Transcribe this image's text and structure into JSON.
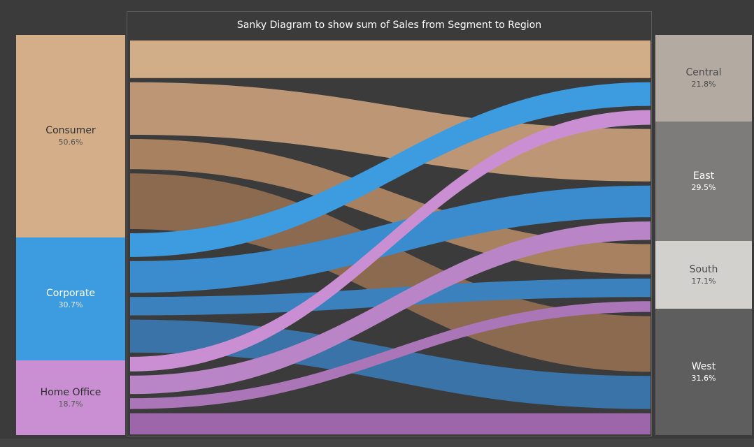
{
  "title": "Sanky Diagram to show sum of Sales from Segment to Region",
  "segments": [
    {
      "name": "Consumer",
      "pct": "50.6%",
      "color": "#d3ae89"
    },
    {
      "name": "Corporate",
      "pct": "30.7%",
      "color": "#3d9be0"
    },
    {
      "name": "Home Office",
      "pct": "18.7%",
      "color": "#c98fd2"
    }
  ],
  "regions": [
    {
      "name": "Central",
      "pct": "21.8%",
      "color": "#b3aaa1",
      "text_color": "#4a4a4a"
    },
    {
      "name": "East",
      "pct": "29.5%",
      "color": "#7d7c7a",
      "text_color": "#ffffff"
    },
    {
      "name": "South",
      "pct": "17.1%",
      "color": "#d3d1ce",
      "text_color": "#4a4a4a"
    },
    {
      "name": "West",
      "pct": "31.6%",
      "color": "#5e5e5e",
      "text_color": "#ffffff"
    }
  ],
  "chart_data": {
    "type": "sankey",
    "title": "Sanky Diagram to show sum of Sales from Segment to Region",
    "measure": "Sales",
    "nodes_left": [
      "Consumer",
      "Corporate",
      "Home Office"
    ],
    "nodes_right": [
      "Central",
      "East",
      "South",
      "West"
    ],
    "segment_share_pct": {
      "Consumer": 50.6,
      "Corporate": 30.7,
      "Home Office": 18.7
    },
    "region_share_pct": {
      "Central": 21.8,
      "East": 29.5,
      "South": 17.1,
      "West": 31.6
    },
    "links": [
      {
        "source": "Consumer",
        "target": "Central",
        "value": 10.8,
        "color": "#d2ae88"
      },
      {
        "source": "Consumer",
        "target": "East",
        "value": 15.1,
        "color": "#bd9775"
      },
      {
        "source": "Consumer",
        "target": "South",
        "value": 8.7,
        "color": "#a88260"
      },
      {
        "source": "Consumer",
        "target": "West",
        "value": 16.0,
        "color": "#8b6a50"
      },
      {
        "source": "Corporate",
        "target": "Central",
        "value": 6.8,
        "color": "#3d9be0"
      },
      {
        "source": "Corporate",
        "target": "East",
        "value": 9.1,
        "color": "#3a8ccf"
      },
      {
        "source": "Corporate",
        "target": "South",
        "value": 5.3,
        "color": "#3b81bd"
      },
      {
        "source": "Corporate",
        "target": "West",
        "value": 9.5,
        "color": "#3a73a8"
      },
      {
        "source": "Home Office",
        "target": "Central",
        "value": 4.2,
        "color": "#c98fd2"
      },
      {
        "source": "Home Office",
        "target": "East",
        "value": 5.3,
        "color": "#b985c6"
      },
      {
        "source": "Home Office",
        "target": "South",
        "value": 3.1,
        "color": "#ab76b8"
      },
      {
        "source": "Home Office",
        "target": "West",
        "value": 6.1,
        "color": "#9d66aa"
      }
    ]
  }
}
